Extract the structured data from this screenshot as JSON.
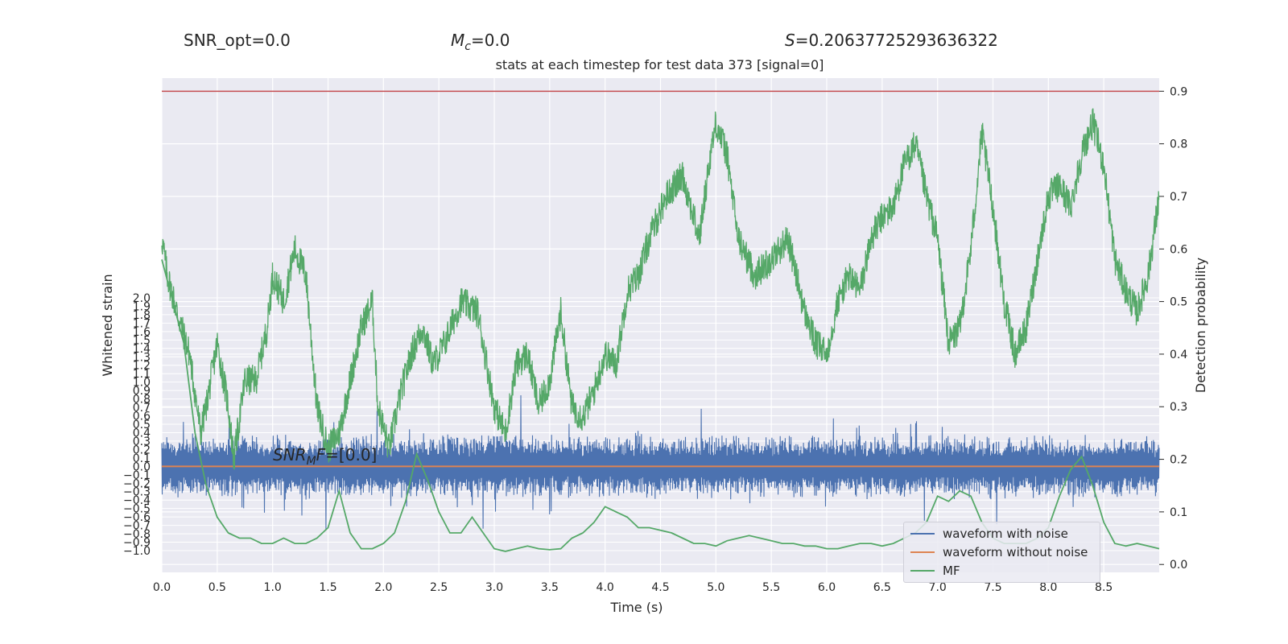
{
  "header": {
    "snr_opt": "SNR_opt=0.0",
    "mc_symbol": "M",
    "mc_sub": "c",
    "mc_value": "=0.0",
    "s_symbol": "S",
    "s_value": "=0.20637725293636322",
    "subtitle": "stats at each timestep for test data 373 [signal=0]"
  },
  "annotation": {
    "snr_sym": "SNR",
    "snr_sub": "M",
    "snr_f": "F",
    "snr_value": "=[0.0]"
  },
  "colors": {
    "plot_bg": "#eaeaf2",
    "grid": "#ffffff",
    "waveform_with_noise": "#4c72b0",
    "waveform_without_noise": "#dd8452",
    "mf": "#55a868",
    "threshold": "#c44e52"
  },
  "chart_data": {
    "type": "line",
    "xlabel": "Time (s)",
    "ylabel_left": "Whitened strain",
    "ylabel_right": "Detection probability",
    "xlim": [
      0.0,
      9.0
    ],
    "ylim_right": [
      -0.015,
      0.925
    ],
    "x_ticks": [
      "0.0",
      "0.5",
      "1.0",
      "1.5",
      "2.0",
      "2.5",
      "3.0",
      "3.5",
      "4.0",
      "4.5",
      "5.0",
      "5.5",
      "6.0",
      "6.5",
      "7.0",
      "7.5",
      "8.0",
      "8.5"
    ],
    "y_left_ticks": [
      "2.0",
      "1.9",
      "1.8",
      "1.7",
      "1.6",
      "1.5",
      "1.4",
      "1.3",
      "1.2",
      "1.1",
      "1.0",
      "0.9",
      "0.8",
      "0.7",
      "0.6",
      "0.5",
      "0.4",
      "0.3",
      "0.2",
      "0.1",
      "0.0",
      "−0.1",
      "−0.2",
      "−0.3",
      "−0.4",
      "−0.5",
      "−0.6",
      "−0.7",
      "−0.8",
      "−0.9",
      "−1.0"
    ],
    "y_right_ticks": [
      "0.0",
      "0.1",
      "0.2",
      "0.3",
      "0.4",
      "0.5",
      "0.6",
      "0.7",
      "0.8",
      "0.9"
    ],
    "threshold": 0.9,
    "legend_position": "lower right",
    "series": [
      {
        "name": "waveform with noise",
        "axis": "left",
        "amplitude_typical": 0.4,
        "amplitude_max": 0.9
      },
      {
        "name": "waveform without noise",
        "axis": "left",
        "constant": 0.0
      },
      {
        "name": "MF",
        "axis": "right",
        "x": [
          0.0,
          0.1,
          0.2,
          0.3,
          0.4,
          0.5,
          0.6,
          0.7,
          0.8,
          0.9,
          1.0,
          1.1,
          1.2,
          1.3,
          1.4,
          1.5,
          1.6,
          1.7,
          1.8,
          1.9,
          2.0,
          2.1,
          2.2,
          2.3,
          2.4,
          2.5,
          2.6,
          2.7,
          2.8,
          2.9,
          3.0,
          3.1,
          3.2,
          3.3,
          3.4,
          3.5,
          3.6,
          3.7,
          3.8,
          3.9,
          4.0,
          4.1,
          4.2,
          4.3,
          4.4,
          4.5,
          4.6,
          4.7,
          4.8,
          4.9,
          5.0,
          5.1,
          5.2,
          5.3,
          5.4,
          5.5,
          5.6,
          5.7,
          5.8,
          5.9,
          6.0,
          6.1,
          6.2,
          6.3,
          6.4,
          6.5,
          6.6,
          6.7,
          6.8,
          6.9,
          7.0,
          7.1,
          7.2,
          7.3,
          7.4,
          7.5,
          7.6,
          7.7,
          7.8,
          7.9,
          8.0,
          8.1,
          8.2,
          8.3,
          8.4,
          8.5,
          8.6,
          8.7,
          8.8,
          8.9,
          9.0
        ],
        "values": [
          0.58,
          0.5,
          0.42,
          0.25,
          0.15,
          0.09,
          0.06,
          0.05,
          0.05,
          0.04,
          0.04,
          0.05,
          0.04,
          0.04,
          0.05,
          0.07,
          0.14,
          0.06,
          0.03,
          0.03,
          0.04,
          0.06,
          0.12,
          0.21,
          0.16,
          0.1,
          0.06,
          0.06,
          0.09,
          0.06,
          0.03,
          0.025,
          0.03,
          0.035,
          0.03,
          0.028,
          0.03,
          0.05,
          0.06,
          0.08,
          0.11,
          0.1,
          0.09,
          0.07,
          0.07,
          0.065,
          0.06,
          0.05,
          0.04,
          0.04,
          0.035,
          0.045,
          0.05,
          0.055,
          0.05,
          0.045,
          0.04,
          0.04,
          0.035,
          0.035,
          0.03,
          0.03,
          0.035,
          0.04,
          0.04,
          0.035,
          0.04,
          0.05,
          0.06,
          0.08,
          0.13,
          0.12,
          0.14,
          0.13,
          0.08,
          0.05,
          0.04,
          0.04,
          0.04,
          0.05,
          0.07,
          0.13,
          0.18,
          0.205,
          0.15,
          0.08,
          0.04,
          0.035,
          0.04,
          0.035,
          0.03
        ]
      },
      {
        "name": "detection probability",
        "axis": "right",
        "x": [
          0.0,
          0.05,
          0.15,
          0.25,
          0.35,
          0.4,
          0.5,
          0.6,
          0.65,
          0.75,
          0.85,
          0.95,
          1.0,
          1.1,
          1.2,
          1.3,
          1.4,
          1.5,
          1.6,
          1.7,
          1.8,
          1.9,
          1.95,
          2.05,
          2.15,
          2.25,
          2.35,
          2.45,
          2.55,
          2.7,
          2.85,
          3.0,
          3.1,
          3.2,
          3.3,
          3.4,
          3.5,
          3.6,
          3.7,
          3.8,
          3.9,
          4.0,
          4.1,
          4.2,
          4.3,
          4.4,
          4.55,
          4.7,
          4.85,
          4.95,
          5.0,
          5.1,
          5.2,
          5.35,
          5.5,
          5.65,
          5.8,
          5.9,
          6.0,
          6.1,
          6.2,
          6.3,
          6.4,
          6.5,
          6.6,
          6.7,
          6.8,
          6.9,
          7.0,
          7.1,
          7.2,
          7.3,
          7.4,
          7.5,
          7.6,
          7.7,
          7.8,
          7.9,
          8.0,
          8.1,
          8.2,
          8.3,
          8.4,
          8.5,
          8.6,
          8.7,
          8.8,
          8.9,
          9.0
        ],
        "values": [
          0.62,
          0.55,
          0.47,
          0.4,
          0.25,
          0.3,
          0.42,
          0.3,
          0.2,
          0.35,
          0.35,
          0.45,
          0.55,
          0.5,
          0.6,
          0.55,
          0.3,
          0.22,
          0.25,
          0.35,
          0.45,
          0.5,
          0.3,
          0.22,
          0.32,
          0.4,
          0.45,
          0.38,
          0.42,
          0.5,
          0.48,
          0.3,
          0.25,
          0.38,
          0.4,
          0.3,
          0.35,
          0.48,
          0.3,
          0.28,
          0.33,
          0.4,
          0.38,
          0.52,
          0.55,
          0.62,
          0.7,
          0.74,
          0.62,
          0.78,
          0.84,
          0.78,
          0.62,
          0.55,
          0.58,
          0.62,
          0.48,
          0.42,
          0.4,
          0.5,
          0.55,
          0.52,
          0.62,
          0.66,
          0.68,
          0.76,
          0.8,
          0.7,
          0.62,
          0.42,
          0.45,
          0.6,
          0.82,
          0.68,
          0.5,
          0.4,
          0.45,
          0.58,
          0.7,
          0.72,
          0.68,
          0.78,
          0.84,
          0.76,
          0.58,
          0.52,
          0.48,
          0.55,
          0.7
        ]
      }
    ]
  }
}
